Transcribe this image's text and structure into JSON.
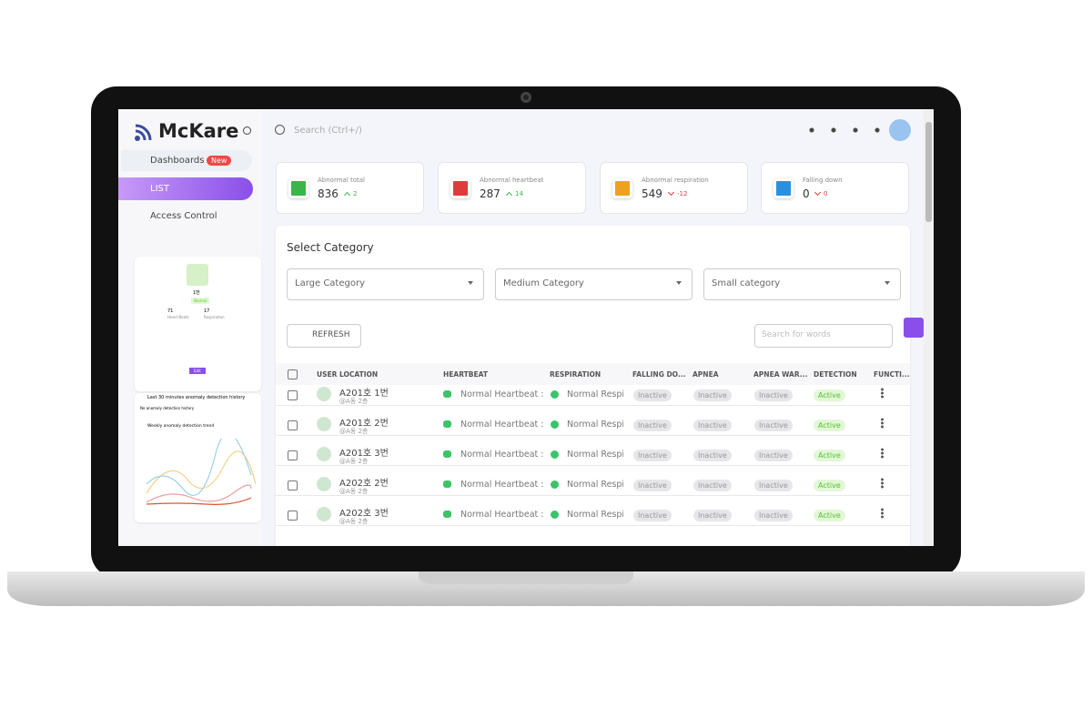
{
  "brand": "McKare",
  "nav": {
    "dashboards": "Dashboards",
    "badge": "New",
    "list": "LIST",
    "access": "Access Control"
  },
  "search": "Search (Ctrl+/)",
  "profile": {
    "name": "1번",
    "status": "Normal",
    "stats": [
      {
        "value": "71",
        "label": "Heart Beats"
      },
      {
        "value": "17",
        "label": "Respiration"
      }
    ],
    "button": "Edit"
  },
  "history": {
    "title": "Last 30 minutes anomaly detection history",
    "empty": "No anomaly detection history",
    "trend": "Weekly anomaly detection trend"
  },
  "stats": [
    {
      "label": "Abnormal total",
      "value": "836",
      "change": "2",
      "trend": "up",
      "color": "#3bb54a"
    },
    {
      "label": "Abnormal heartbeat",
      "value": "287",
      "change": "14",
      "trend": "up",
      "color": "#e03b3b"
    },
    {
      "label": "Abnormal respiration",
      "value": "549",
      "change": "-12",
      "trend": "down",
      "color": "#f0a020"
    },
    {
      "label": "Falling down",
      "value": "0",
      "change": "0",
      "trend": "down",
      "color": "#2b8fe0"
    }
  ],
  "category": {
    "title": "Select Category",
    "selects": [
      "Large Category",
      "Medium Category",
      "Small category"
    ],
    "refresh": "REFRESH",
    "search": "Search for words"
  },
  "table": {
    "headers": [
      "USER LOCATION",
      "HEARTBEAT",
      "RESPIRATION",
      "FALLING DO...",
      "APNEA",
      "APNEA WAR...",
      "DETECTION",
      "FUNCTI..."
    ],
    "rows": [
      [
        "A201호 1번",
        "@A동 2층",
        "Normal Heartbeat :",
        "Normal Respi",
        "Inactive",
        "Inactive",
        "Inactive",
        "Active"
      ],
      [
        "A201호 2번",
        "@A동 2층",
        "Normal Heartbeat :",
        "Normal Respi",
        "Inactive",
        "Inactive",
        "Inactive",
        "Active"
      ],
      [
        "A201호 3번",
        "@A동 2층",
        "Normal Heartbeat :",
        "Normal Respi",
        "Inactive",
        "Inactive",
        "Inactive",
        "Active"
      ],
      [
        "A202호 2번",
        "@A동 2층",
        "Normal Heartbeat :",
        "Normal Respi",
        "Inactive",
        "Inactive",
        "Inactive",
        "Active"
      ],
      [
        "A202호 3번",
        "@A동 2층",
        "Normal Heartbeat :",
        "Normal Respi",
        "Inactive",
        "Inactive",
        "Inactive",
        "Active"
      ]
    ]
  }
}
